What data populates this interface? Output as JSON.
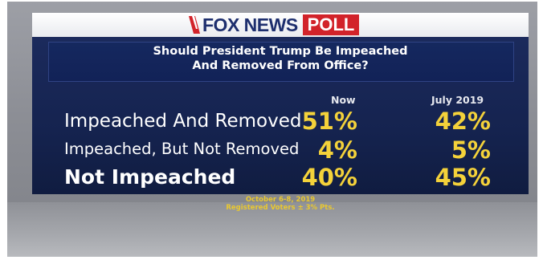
{
  "logo": {
    "brand": "FOX NEWS",
    "badge": "POLL",
    "colors": {
      "brand": "#1e2f6e",
      "badge_bg": "#d2232a"
    },
    "icon": "fox-slash-icon"
  },
  "question": {
    "line1": "Should President Trump Be Impeached",
    "line2": "And Removed From Office?"
  },
  "chart_data": {
    "type": "table",
    "columns": [
      "Now",
      "July 2019"
    ],
    "rows": [
      {
        "label": "Impeached And Removed",
        "values": [
          "51%",
          "42%"
        ]
      },
      {
        "label": "Impeached, But Not Removed",
        "values": [
          "4%",
          "5%"
        ]
      },
      {
        "label": "Not Impeached",
        "values": [
          "40%",
          "45%"
        ]
      }
    ],
    "colors": {
      "panel": "#15234f",
      "values": "#f4d23a",
      "labels": "#ffffff"
    }
  },
  "source": {
    "line1": "October 6-8, 2019",
    "line2": "Registered Voters ± 3% Pts."
  }
}
